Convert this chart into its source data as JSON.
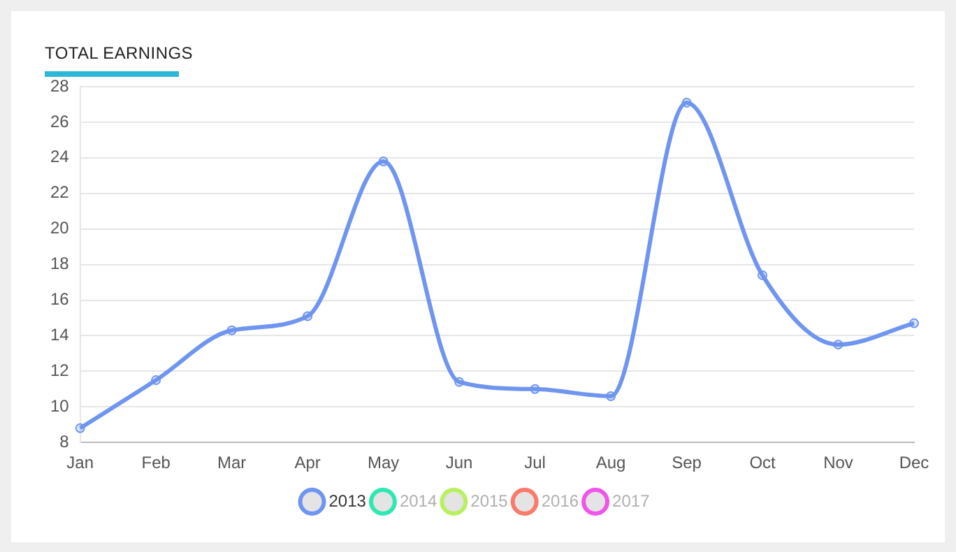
{
  "chart_data": {
    "type": "line",
    "title": "TOTAL EARNINGS",
    "categories": [
      "Jan",
      "Feb",
      "Mar",
      "Apr",
      "May",
      "Jun",
      "Jul",
      "Aug",
      "Sep",
      "Oct",
      "Nov",
      "Dec"
    ],
    "series": [
      {
        "name": "2013",
        "color": "#6f95f0",
        "values": [
          8.8,
          11.5,
          14.3,
          15.1,
          23.8,
          11.4,
          11.0,
          10.6,
          27.1,
          17.4,
          13.5,
          14.7
        ]
      },
      {
        "name": "2014",
        "color": "#2de8b0",
        "values": [
          null,
          null,
          null,
          null,
          null,
          null,
          null,
          null,
          null,
          null,
          null,
          null
        ]
      },
      {
        "name": "2015",
        "color": "#b8f060",
        "values": [
          null,
          null,
          null,
          null,
          null,
          null,
          null,
          null,
          null,
          null,
          null,
          null
        ]
      },
      {
        "name": "2016",
        "color": "#fb7a6a",
        "values": [
          null,
          null,
          null,
          null,
          null,
          null,
          null,
          null,
          null,
          null,
          null,
          null
        ]
      },
      {
        "name": "2017",
        "color": "#f054e8",
        "values": [
          null,
          null,
          null,
          null,
          null,
          null,
          null,
          null,
          null,
          null,
          null,
          null
        ]
      }
    ],
    "ylim": [
      8,
      28
    ],
    "yticks": [
      8,
      10,
      12,
      14,
      16,
      18,
      20,
      22,
      24,
      26,
      28
    ],
    "grid": "y",
    "legend": "bottom",
    "marker": "circle",
    "line_style": "solid"
  }
}
